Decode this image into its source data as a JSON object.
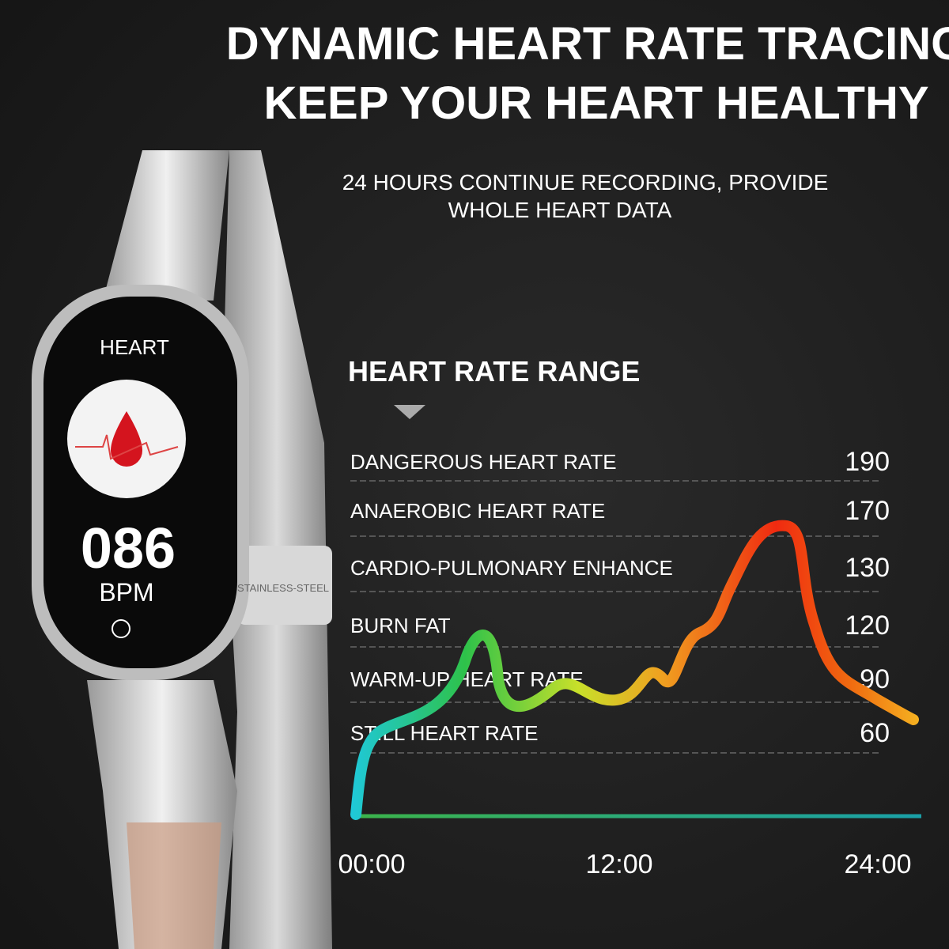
{
  "header": {
    "title_lines": [
      "DYNAMIC HEART RATE TRACING",
      "KEEP YOUR HEART HEALTHY"
    ],
    "subtitle_lines": [
      "24 HOURS CONTINUE RECORDING, PROVIDE",
      "WHOLE HEART DATA"
    ]
  },
  "watch": {
    "screen_title": "HEART",
    "reading": "086",
    "unit": "BPM",
    "band_text": "STAINLESS-STEEL"
  },
  "range": {
    "title": "HEART RATE RANGE",
    "zones": [
      {
        "label": "DANGEROUS HEART RATE",
        "value": 190
      },
      {
        "label": "ANAEROBIC HEART RATE",
        "value": 170
      },
      {
        "label": "CARDIO-PULMONARY ENHANCE",
        "value": 130
      },
      {
        "label": "BURN FAT",
        "value": 120
      },
      {
        "label": "WARM-UP HEART RATE",
        "value": 90
      },
      {
        "label": "STILL HEART RATE",
        "value": 60
      }
    ],
    "times": [
      "00:00",
      "12:00",
      "24:00"
    ]
  }
}
